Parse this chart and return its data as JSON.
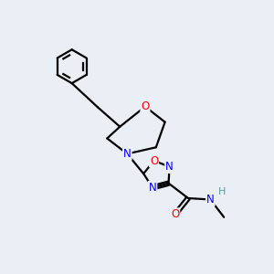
{
  "background_color": "#eaeff5",
  "bond_color": "#000000",
  "atom_colors": {
    "O": "#ff0000",
    "N": "#0000ff",
    "C": "#000000",
    "H": "#5a9a9a"
  },
  "figsize": [
    3.0,
    3.0
  ],
  "dpi": 100
}
